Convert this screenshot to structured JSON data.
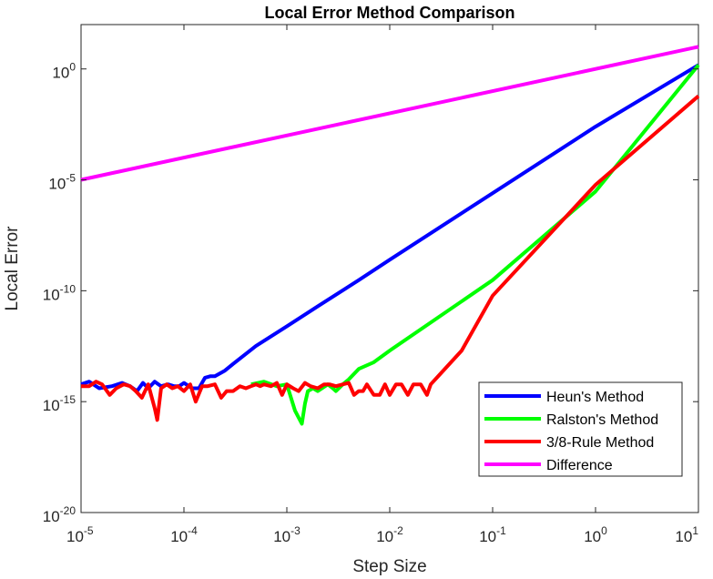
{
  "chart_data": {
    "type": "line",
    "title": "Local Error Method Comparison",
    "xlabel": "Step Size",
    "ylabel": "Local Error",
    "xscale": "log",
    "yscale": "log",
    "xlim": [
      1e-05,
      10
    ],
    "ylim": [
      1e-20,
      100.0
    ],
    "xticks": [
      {
        "base": "10",
        "exp": "-5",
        "value": 1e-05
      },
      {
        "base": "10",
        "exp": "-4",
        "value": 0.0001
      },
      {
        "base": "10",
        "exp": "-3",
        "value": 0.001
      },
      {
        "base": "10",
        "exp": "-2",
        "value": 0.01
      },
      {
        "base": "10",
        "exp": "-1",
        "value": 0.1
      },
      {
        "base": "10",
        "exp": "0",
        "value": 1
      },
      {
        "base": "10",
        "exp": "1",
        "value": 10
      }
    ],
    "yticks": [
      {
        "base": "10",
        "exp": "-20",
        "value": 1e-20
      },
      {
        "base": "10",
        "exp": "-15",
        "value": 1e-15
      },
      {
        "base": "10",
        "exp": "-10",
        "value": 1e-10
      },
      {
        "base": "10",
        "exp": "-5",
        "value": 1e-05
      },
      {
        "base": "10",
        "exp": "0",
        "value": 1
      }
    ],
    "grid": false,
    "legend_position": "bottom-right",
    "series": [
      {
        "name": "Heun's Method",
        "color": "#0000ff",
        "x": [
          1e-05,
          1.2e-05,
          1.5e-05,
          2e-05,
          2.5e-05,
          3e-05,
          3.5e-05,
          4e-05,
          4.5e-05,
          5.2e-05,
          6e-05,
          7e-05,
          8e-05,
          9e-05,
          0.0001,
          0.00012,
          0.00014,
          0.00016,
          0.00018,
          0.0002,
          0.00025,
          0.0003,
          0.0005,
          0.001,
          0.002,
          0.005,
          0.01,
          0.1,
          1,
          10
        ],
        "y": [
          6e-15,
          8e-15,
          4e-15,
          5e-15,
          7e-15,
          5e-15,
          3e-15,
          7e-15,
          4e-15,
          8e-15,
          5e-15,
          6e-15,
          5e-15,
          5e-15,
          7e-15,
          4e-15,
          4e-15,
          1.2e-14,
          1.4e-14,
          1.4e-14,
          2.5e-14,
          5e-14,
          3.2e-13,
          2.5e-12,
          2e-11,
          3e-10,
          2.5e-09,
          2.5e-06,
          0.0025,
          1.5
        ]
      },
      {
        "name": "Ralston's Method",
        "color": "#00ff00",
        "x": [
          0.00045,
          0.0006,
          0.0008,
          0.001,
          0.0012,
          0.0014,
          0.0015,
          0.0016,
          0.0018,
          0.002,
          0.0022,
          0.0025,
          0.0028,
          0.003,
          0.0035,
          0.004,
          0.005,
          0.007,
          0.01,
          0.1,
          1,
          10
        ],
        "y": [
          6e-15,
          8e-15,
          5e-15,
          6e-15,
          4e-16,
          1e-16,
          8e-16,
          3e-15,
          4e-15,
          3e-15,
          4e-15,
          6e-15,
          4e-15,
          3e-15,
          6e-15,
          1e-14,
          3e-14,
          6e-14,
          2e-13,
          3e-10,
          3e-06,
          1.5
        ]
      },
      {
        "name": "3/8-Rule Method",
        "color": "#ff0000",
        "x": [
          1e-05,
          1.2e-05,
          1.4e-05,
          1.6e-05,
          1.9e-05,
          2.2e-05,
          2.6e-05,
          3e-05,
          3.4e-05,
          3.9e-05,
          4.5e-05,
          5.2e-05,
          5.5e-05,
          6e-05,
          6.8e-05,
          7.7e-05,
          8.7e-05,
          0.0001,
          0.000115,
          0.00013,
          0.00015,
          0.00017,
          0.0002,
          0.00023,
          0.00026,
          0.0003,
          0.00035,
          0.0004,
          0.00045,
          0.0005,
          0.00055,
          0.0006,
          0.0007,
          0.0008,
          0.0009,
          0.001,
          0.00115,
          0.0013,
          0.0015,
          0.0017,
          0.002,
          0.0023,
          0.0026,
          0.003,
          0.0035,
          0.004,
          0.0045,
          0.005,
          0.0055,
          0.006,
          0.007,
          0.008,
          0.009,
          0.01,
          0.0115,
          0.013,
          0.015,
          0.017,
          0.02,
          0.023,
          0.025,
          0.03,
          0.05,
          0.1,
          1,
          10
        ],
        "y": [
          5e-15,
          5e-15,
          8e-15,
          6e-15,
          2e-15,
          4e-15,
          6e-15,
          5e-15,
          3e-15,
          1.5e-15,
          6e-15,
          5e-16,
          1.5e-16,
          4e-15,
          6e-15,
          4e-15,
          5e-15,
          3e-15,
          6e-15,
          1e-15,
          5e-15,
          5e-15,
          6e-15,
          1.5e-15,
          3e-15,
          3e-15,
          5e-15,
          4e-15,
          5e-15,
          6e-15,
          5e-15,
          6e-15,
          5e-15,
          7e-15,
          2e-15,
          6e-15,
          4e-15,
          3e-15,
          7e-15,
          5e-15,
          4e-15,
          6e-15,
          6e-15,
          5e-15,
          6e-15,
          7e-15,
          2e-15,
          3e-15,
          3e-15,
          6e-15,
          2e-15,
          2e-15,
          6e-15,
          2e-15,
          6e-15,
          6e-15,
          2e-15,
          6e-15,
          6e-15,
          2e-15,
          6e-15,
          1.5e-14,
          2e-13,
          6e-11,
          6e-06,
          0.06
        ]
      },
      {
        "name": "Difference",
        "color": "#ff00ff",
        "x": [
          1e-05,
          10
        ],
        "y": [
          1e-05,
          10
        ]
      }
    ]
  }
}
